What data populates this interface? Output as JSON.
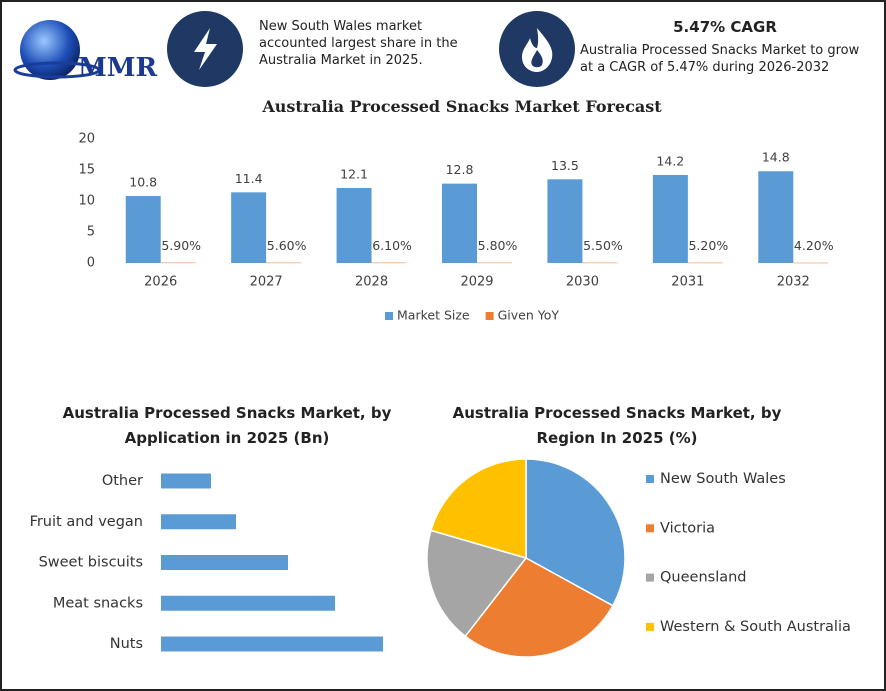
{
  "header": {
    "logo": "MMR",
    "fact": "New South Wales market accounted largest share in the Australia Market in 2025.",
    "cagr_title": "5.47% CAGR",
    "cagr_text": "Australia Processed Snacks Market to grow at a CAGR of 5.47% during 2026-2032"
  },
  "chart_data": [
    {
      "type": "bar",
      "title": "Australia Processed Snacks Market Forecast",
      "categories": [
        "2026",
        "2027",
        "2028",
        "2029",
        "2030",
        "2031",
        "2032"
      ],
      "series": [
        {
          "name": "Market Size",
          "color": "#5b9bd5",
          "values": [
            10.8,
            11.4,
            12.1,
            12.8,
            13.5,
            14.2,
            14.8
          ]
        },
        {
          "name": "Given YoY",
          "color": "#ed7d31",
          "values": [
            0.059,
            0.056,
            0.061,
            0.058,
            0.055,
            0.052,
            0.042
          ],
          "value_labels": [
            "5.90%",
            "5.60%",
            "6.10%",
            "5.80%",
            "5.50%",
            "5.20%",
            "4.20%"
          ]
        }
      ],
      "ylim": [
        0,
        20
      ],
      "yticks": [
        0,
        5,
        10,
        15,
        20
      ],
      "grid": false,
      "legend": "bottom"
    },
    {
      "type": "hbar",
      "title": "Australia Processed Snacks Market, by\nApplication in 2025 (Bn)",
      "categories": [
        "Other",
        "Fruit and vegan",
        "Sweet biscuits",
        "Meat snacks",
        "Nuts"
      ],
      "values": [
        0.5,
        0.75,
        1.27,
        1.74,
        2.22
      ],
      "color": "#5b9bd5",
      "xlim": [
        0,
        2.5
      ]
    },
    {
      "type": "pie",
      "title": "Australia Processed Snacks Market, by\nRegion In 2025 (%)",
      "categories": [
        "New South Wales",
        "Victoria",
        "Queensland",
        "Western & South Australia"
      ],
      "values": [
        33,
        27.5,
        19,
        20.5
      ],
      "colors": [
        "#5b9bd5",
        "#ed7d31",
        "#a5a5a5",
        "#ffc000"
      ],
      "legend": "right"
    }
  ]
}
